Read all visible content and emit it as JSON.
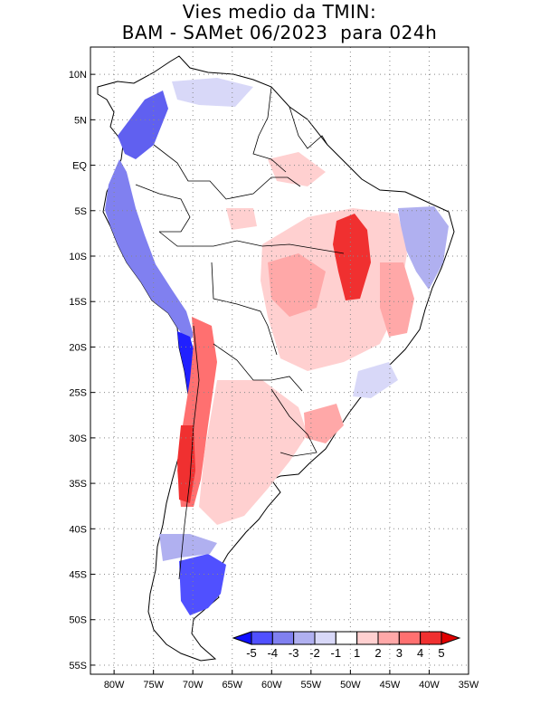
{
  "title": {
    "line1": "Vies medio da TMIN:",
    "line2": "BAM - SAMet 06/2023  para 024h"
  },
  "map": {
    "region": "South America",
    "lon_range": [
      -83,
      -35
    ],
    "lat_range": [
      -56,
      13
    ],
    "grid": "dotted",
    "lat_labels": [
      {
        "lat": 10,
        "text": "10N"
      },
      {
        "lat": 5,
        "text": "5N"
      },
      {
        "lat": 0,
        "text": "EQ"
      },
      {
        "lat": -5,
        "text": "5S"
      },
      {
        "lat": -10,
        "text": "10S"
      },
      {
        "lat": -15,
        "text": "15S"
      },
      {
        "lat": -20,
        "text": "20S"
      },
      {
        "lat": -25,
        "text": "25S"
      },
      {
        "lat": -30,
        "text": "30S"
      },
      {
        "lat": -35,
        "text": "35S"
      },
      {
        "lat": -40,
        "text": "40S"
      },
      {
        "lat": -45,
        "text": "45S"
      },
      {
        "lat": -50,
        "text": "50S"
      },
      {
        "lat": -55,
        "text": "55S"
      }
    ],
    "lon_labels": [
      {
        "lon": -80,
        "text": "80W"
      },
      {
        "lon": -75,
        "text": "75W"
      },
      {
        "lon": -70,
        "text": "70W"
      },
      {
        "lon": -65,
        "text": "65W"
      },
      {
        "lon": -60,
        "text": "60W"
      },
      {
        "lon": -55,
        "text": "55W"
      },
      {
        "lon": -50,
        "text": "50W"
      },
      {
        "lon": -45,
        "text": "45W"
      },
      {
        "lon": -40,
        "text": "40W"
      },
      {
        "lon": -35,
        "text": "35W"
      }
    ]
  },
  "colorbar": {
    "labels": [
      "-5",
      "-4",
      "-3",
      "-2",
      "-1",
      "1",
      "2",
      "3",
      "4",
      "5"
    ],
    "colors": [
      "#1010ff",
      "#5050ff",
      "#8080f0",
      "#b0b0f0",
      "#d8d8f8",
      "#ffffff",
      "#ffd0d0",
      "#ffa8a8",
      "#ff7070",
      "#f03030",
      "#e00000"
    ]
  }
}
